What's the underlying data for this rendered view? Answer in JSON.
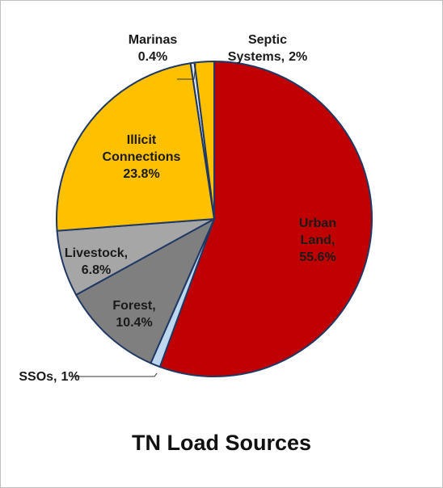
{
  "chart_data": {
    "type": "pie",
    "title": "TN Load Sources",
    "categories": [
      "Urban Land,",
      "SSOs,",
      "Forest,",
      "Livestock,",
      "Illicit Connections",
      "Marinas",
      "Septic Systems,"
    ],
    "values": [
      55.6,
      1,
      10.4,
      6.8,
      23.8,
      0.4,
      2
    ],
    "value_labels": [
      "55.6%",
      "1%",
      "10.4%",
      "6.8%",
      "23.8%",
      "0.4%",
      "2%"
    ],
    "colors": [
      "#C00000",
      "#BDD7EE",
      "#7F7F7F",
      "#A6A6A6",
      "#FFC000",
      "#DEEBF7",
      "#FFC000"
    ]
  }
}
